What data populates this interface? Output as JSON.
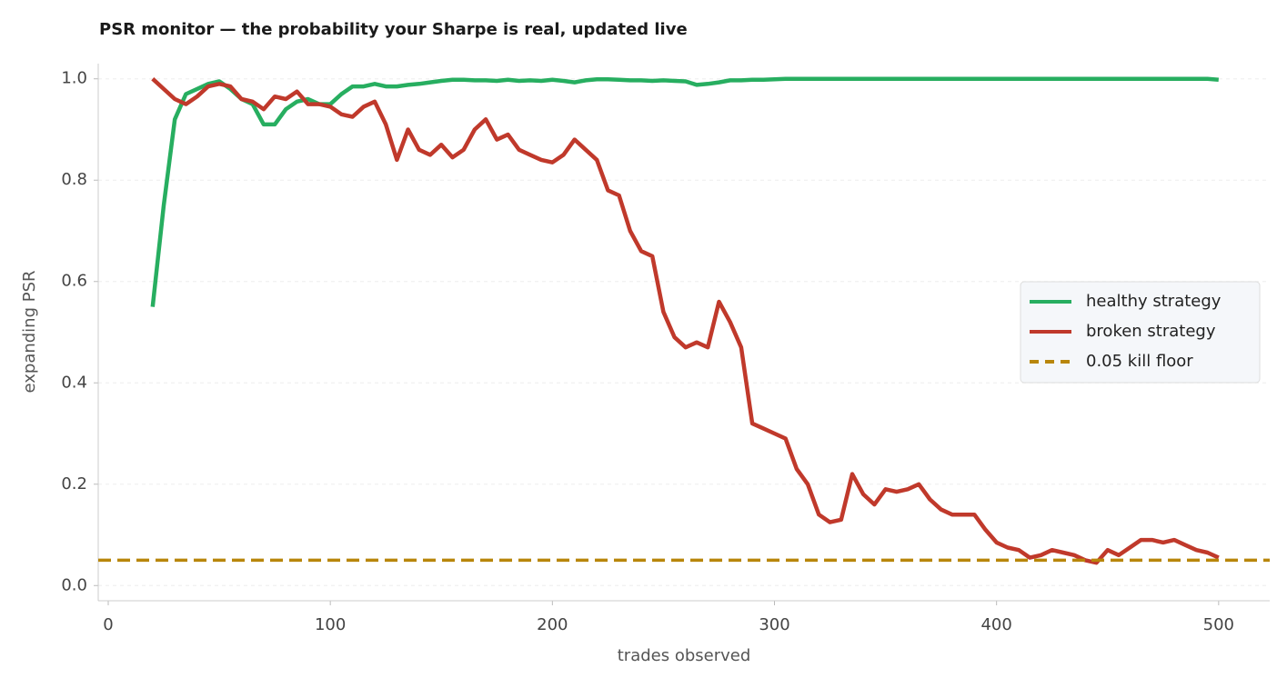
{
  "chart_data": {
    "type": "line",
    "title": "PSR monitor — the probability your Sharpe is real, updated live",
    "xlabel": "trades observed",
    "ylabel": "expanding PSR",
    "x": [
      20,
      25,
      30,
      35,
      40,
      45,
      50,
      55,
      60,
      65,
      70,
      75,
      80,
      85,
      90,
      95,
      100,
      105,
      110,
      115,
      120,
      125,
      130,
      135,
      140,
      145,
      150,
      155,
      160,
      165,
      170,
      175,
      180,
      185,
      190,
      195,
      200,
      205,
      210,
      215,
      220,
      225,
      230,
      235,
      240,
      245,
      250,
      255,
      260,
      265,
      270,
      275,
      280,
      285,
      290,
      295,
      300,
      305,
      310,
      315,
      320,
      325,
      330,
      335,
      340,
      345,
      350,
      355,
      360,
      365,
      370,
      375,
      380,
      385,
      390,
      395,
      400,
      405,
      410,
      415,
      420,
      425,
      430,
      435,
      440,
      445,
      450,
      455,
      460,
      465,
      470,
      475,
      480,
      485,
      490,
      495,
      500
    ],
    "series": [
      {
        "name": "healthy strategy",
        "color": "#27ae60",
        "values": [
          0.55,
          0.75,
          0.92,
          0.97,
          0.98,
          0.99,
          0.995,
          0.98,
          0.96,
          0.95,
          0.91,
          0.91,
          0.94,
          0.955,
          0.96,
          0.95,
          0.95,
          0.97,
          0.985,
          0.985,
          0.99,
          0.985,
          0.985,
          0.988,
          0.99,
          0.993,
          0.996,
          0.998,
          0.998,
          0.997,
          0.997,
          0.996,
          0.998,
          0.996,
          0.997,
          0.996,
          0.998,
          0.996,
          0.993,
          0.997,
          0.999,
          0.999,
          0.998,
          0.997,
          0.997,
          0.996,
          0.997,
          0.996,
          0.995,
          0.988,
          0.99,
          0.993,
          0.997,
          0.997,
          0.998,
          0.998,
          0.999,
          1.0,
          1.0,
          1.0,
          1.0,
          1.0,
          1.0,
          1.0,
          1.0,
          1.0,
          1.0,
          1.0,
          1.0,
          1.0,
          1.0,
          1.0,
          1.0,
          1.0,
          1.0,
          1.0,
          1.0,
          1.0,
          1.0,
          1.0,
          1.0,
          1.0,
          1.0,
          1.0,
          1.0,
          1.0,
          1.0,
          1.0,
          1.0,
          1.0,
          1.0,
          1.0,
          1.0,
          1.0,
          1.0,
          1.0,
          0.998
        ]
      },
      {
        "name": "broken strategy",
        "color": "#c0392b",
        "values": [
          1.0,
          0.98,
          0.96,
          0.95,
          0.965,
          0.985,
          0.99,
          0.985,
          0.96,
          0.955,
          0.94,
          0.965,
          0.96,
          0.975,
          0.95,
          0.95,
          0.945,
          0.93,
          0.925,
          0.945,
          0.955,
          0.91,
          0.84,
          0.9,
          0.86,
          0.85,
          0.87,
          0.845,
          0.86,
          0.9,
          0.92,
          0.88,
          0.89,
          0.86,
          0.85,
          0.84,
          0.835,
          0.85,
          0.88,
          0.86,
          0.84,
          0.78,
          0.77,
          0.7,
          0.66,
          0.65,
          0.54,
          0.49,
          0.47,
          0.48,
          0.47,
          0.56,
          0.52,
          0.47,
          0.32,
          0.31,
          0.3,
          0.29,
          0.23,
          0.2,
          0.14,
          0.125,
          0.13,
          0.22,
          0.18,
          0.16,
          0.19,
          0.185,
          0.19,
          0.2,
          0.17,
          0.15,
          0.14,
          0.14,
          0.14,
          0.11,
          0.085,
          0.075,
          0.07,
          0.055,
          0.06,
          0.07,
          0.065,
          0.06,
          0.05,
          0.045,
          0.07,
          0.06,
          0.075,
          0.09,
          0.09,
          0.085,
          0.09,
          0.08,
          0.07,
          0.065,
          0.055
        ]
      }
    ],
    "hlines": [
      {
        "name": "0.05 kill floor",
        "value": 0.05,
        "color": "#b8860b",
        "style": "dashed"
      }
    ],
    "xlim": [
      -4.5,
      523
    ],
    "ylim": [
      -0.03,
      1.03
    ],
    "xticks": [
      0,
      100,
      200,
      300,
      400,
      500
    ],
    "yticks": [
      {
        "value": 0,
        "label": "0.0"
      },
      {
        "value": 0.2,
        "label": "0.2"
      },
      {
        "value": 0.4,
        "label": "0.4"
      },
      {
        "value": 0.6,
        "label": "0.6"
      },
      {
        "value": 0.8,
        "label": "0.8"
      },
      {
        "value": 1,
        "label": "1.0"
      }
    ],
    "grid": true,
    "legend": "right"
  }
}
